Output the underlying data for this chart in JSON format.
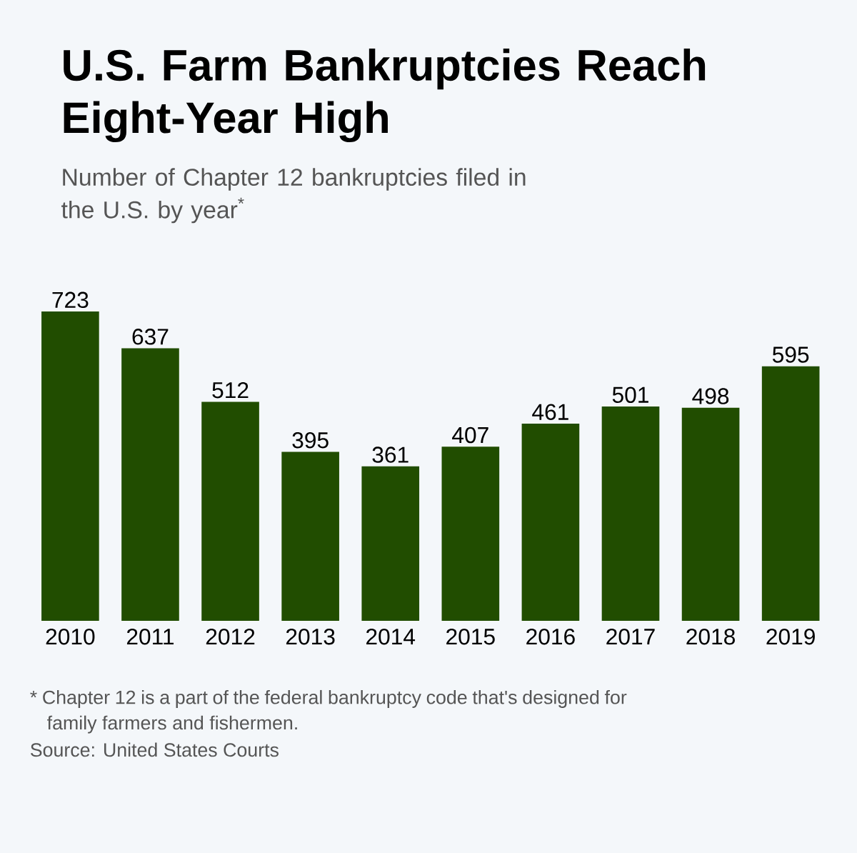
{
  "chart_data": {
    "type": "bar",
    "title": "U.S. Farm Bankruptcies Reach Eight-Year High",
    "subtitle": "Number of Chapter 12 bankruptcies filed in the U.S. by year$^{*}$",
    "categories": [
      "2010",
      "2011",
      "2012",
      "2013",
      "2014",
      "2015",
      "2016",
      "2017",
      "2018",
      "2019"
    ],
    "values": [
      723,
      637,
      512,
      395,
      361,
      407,
      461,
      501,
      498,
      595
    ],
    "color": "#214d00",
    "data_labels": true,
    "annotations": [
      "* Chapter 12 is a part of the federal bankruptcy code that's designed for family farmers and fishermen.",
      "Source: United States Courts"
    ]
  }
}
